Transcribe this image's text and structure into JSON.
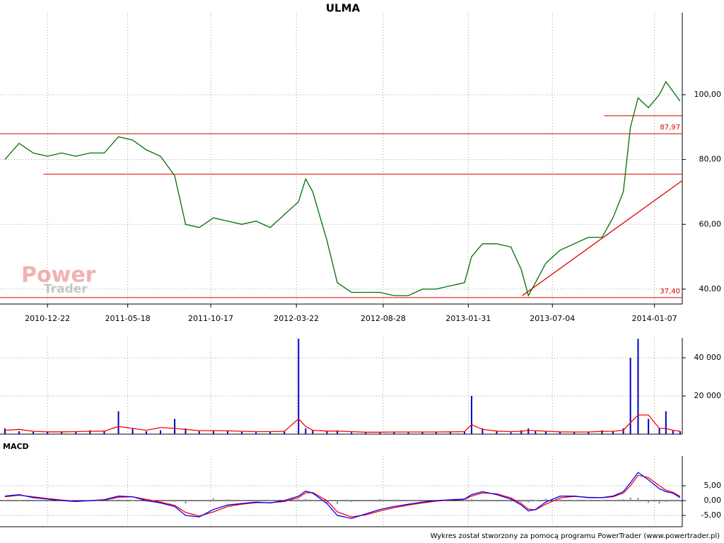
{
  "chart_data": [
    {
      "type": "line",
      "title": "ULMA",
      "x": [
        "2010-10-05",
        "2010-10-31",
        "2010-11-26",
        "2010-12-22",
        "2011-01-17",
        "2011-02-12",
        "2011-03-10",
        "2011-04-05",
        "2011-05-01",
        "2011-05-27",
        "2011-06-21",
        "2011-07-17",
        "2011-08-12",
        "2011-09-01",
        "2011-09-26",
        "2011-10-22",
        "2011-11-17",
        "2011-12-13",
        "2012-01-08",
        "2012-02-03",
        "2012-02-29",
        "2012-03-26",
        "2012-04-08",
        "2012-04-21",
        "2012-05-17",
        "2012-06-05",
        "2012-07-01",
        "2012-07-27",
        "2012-08-22",
        "2012-09-17",
        "2012-10-13",
        "2012-11-08",
        "2012-12-03",
        "2012-12-29",
        "2013-01-24",
        "2013-02-06",
        "2013-02-26",
        "2013-03-24",
        "2013-04-19",
        "2013-05-08",
        "2013-05-21",
        "2013-06-03",
        "2013-06-22",
        "2013-07-18",
        "2013-08-13",
        "2013-09-08",
        "2013-10-03",
        "2013-10-23",
        "2013-11-11",
        "2013-11-24",
        "2013-12-08",
        "2013-12-27",
        "2014-01-16",
        "2014-01-28",
        "2014-02-10",
        "2014-02-23"
      ],
      "series": [
        {
          "color": "#007000",
          "values": [
            80,
            85,
            82,
            81,
            82,
            81,
            82,
            82,
            87,
            86,
            83,
            81,
            75,
            60,
            59,
            62,
            61,
            60,
            61,
            59,
            63,
            67,
            74,
            70,
            55,
            42,
            39,
            39,
            39,
            38,
            38,
            40,
            40,
            41,
            42,
            50,
            54,
            54,
            53,
            46,
            38,
            42,
            48,
            52,
            54,
            56,
            56,
            62,
            70,
            90,
            99,
            96,
            100,
            104,
            101,
            98
          ]
        }
      ],
      "xlim": [
        "2010-09-26",
        "2014-02-27"
      ],
      "xticks": [
        "2010-12-22",
        "2011-05-18",
        "2011-10-17",
        "2012-03-22",
        "2012-08-28",
        "2013-01-31",
        "2013-07-04",
        "2014-01-07"
      ],
      "ylim": [
        35.4,
        125.3
      ],
      "yticks": [
        {
          "value": 40,
          "label": "40,00"
        },
        {
          "value": 60,
          "label": "60,00"
        },
        {
          "value": 80,
          "label": "80,00"
        },
        {
          "value": 100,
          "label": "100,00"
        }
      ],
      "grid": true,
      "levels": [
        {
          "value": 87.97,
          "label": "87,97"
        },
        {
          "value": 37.4,
          "label": "37,40"
        }
      ],
      "support_lines": [
        {
          "from": "2010-12-15",
          "value": 75.5
        },
        {
          "from": "2013-10-07",
          "value": 93.5
        }
      ],
      "trendline": {
        "x": [
          "2013-05-10",
          "2014-02-27"
        ],
        "y": [
          38,
          73.5
        ]
      },
      "line_color": "#e00000"
    },
    {
      "type": "volume",
      "x": [
        "2010-10-05",
        "2010-10-31",
        "2010-11-26",
        "2010-12-22",
        "2011-01-17",
        "2011-02-12",
        "2011-03-10",
        "2011-04-05",
        "2011-05-01",
        "2011-05-27",
        "2011-06-21",
        "2011-07-17",
        "2011-08-12",
        "2011-09-01",
        "2011-09-26",
        "2011-10-22",
        "2011-11-17",
        "2011-12-13",
        "2012-01-08",
        "2012-02-03",
        "2012-02-29",
        "2012-03-26",
        "2012-04-08",
        "2012-04-21",
        "2012-05-17",
        "2012-06-05",
        "2012-07-01",
        "2012-07-27",
        "2012-08-22",
        "2012-09-17",
        "2012-10-13",
        "2012-11-08",
        "2012-12-03",
        "2012-12-29",
        "2013-01-24",
        "2013-02-06",
        "2013-02-26",
        "2013-03-24",
        "2013-04-19",
        "2013-05-08",
        "2013-05-21",
        "2013-06-03",
        "2013-06-22",
        "2013-07-18",
        "2013-08-13",
        "2013-09-08",
        "2013-10-03",
        "2013-10-23",
        "2013-11-11",
        "2013-11-24",
        "2013-12-08",
        "2013-12-27",
        "2014-01-16",
        "2014-01-28",
        "2014-02-10",
        "2014-02-23"
      ],
      "series": [
        {
          "type": "bar",
          "color": "#0000c0",
          "values": [
            3000,
            1500,
            1200,
            1000,
            1500,
            1200,
            2000,
            1500,
            12000,
            3000,
            1500,
            2000,
            8000,
            3000,
            1500,
            2000,
            1500,
            1200,
            1000,
            1500,
            1500,
            50000,
            3000,
            2000,
            1500,
            2000,
            1000,
            800,
            1000,
            1200,
            1000,
            1200,
            1000,
            1500,
            1500,
            20000,
            3000,
            1500,
            1000,
            2000,
            3000,
            1500,
            1500,
            1000,
            1200,
            1000,
            2000,
            1500,
            3000,
            40000,
            50000,
            8000,
            3000,
            12000,
            2000,
            1500
          ]
        },
        {
          "type": "line",
          "color": "#ff0000",
          "values": [
            2000,
            2500,
            1500,
            1200,
            1200,
            1300,
            1500,
            1600,
            4000,
            3000,
            2000,
            3500,
            3000,
            2500,
            1800,
            1800,
            1700,
            1500,
            1300,
            1300,
            1500,
            8000,
            4000,
            2000,
            1600,
            1600,
            1300,
            1000,
            1000,
            1100,
            1100,
            1100,
            1100,
            1200,
            1300,
            5000,
            2500,
            1600,
            1300,
            1500,
            2000,
            1800,
            1500,
            1200,
            1100,
            1100,
            1400,
            1500,
            2000,
            6000,
            10000,
            10000,
            3000,
            3000,
            2000,
            1500
          ]
        }
      ],
      "ylim": [
        0,
        50400
      ],
      "yticks": [
        {
          "value": 20000,
          "label": "20 000"
        },
        {
          "value": 40000,
          "label": "40 000"
        }
      ]
    },
    {
      "type": "macd",
      "title": "MACD",
      "x": [
        "2010-10-05",
        "2010-10-31",
        "2010-11-26",
        "2010-12-22",
        "2011-01-17",
        "2011-02-12",
        "2011-03-10",
        "2011-04-05",
        "2011-05-01",
        "2011-05-27",
        "2011-06-21",
        "2011-07-17",
        "2011-08-12",
        "2011-09-01",
        "2011-09-26",
        "2011-10-22",
        "2011-11-17",
        "2011-12-13",
        "2012-01-08",
        "2012-02-03",
        "2012-02-29",
        "2012-03-26",
        "2012-04-08",
        "2012-04-21",
        "2012-05-17",
        "2012-06-05",
        "2012-07-01",
        "2012-07-27",
        "2012-08-22",
        "2012-09-17",
        "2012-10-13",
        "2012-11-08",
        "2012-12-03",
        "2012-12-29",
        "2013-01-24",
        "2013-02-06",
        "2013-02-26",
        "2013-03-24",
        "2013-04-19",
        "2013-05-08",
        "2013-05-21",
        "2013-06-03",
        "2013-06-22",
        "2013-07-18",
        "2013-08-13",
        "2013-09-08",
        "2013-10-03",
        "2013-10-23",
        "2013-11-11",
        "2013-11-24",
        "2013-12-08",
        "2013-12-27",
        "2014-01-16",
        "2014-01-28",
        "2014-02-10",
        "2014-02-23"
      ],
      "series": [
        {
          "type": "bar",
          "color": "#8899aa",
          "values": [
            0.2,
            0.2,
            -0.3,
            -0.2,
            -0.2,
            -0.1,
            0.1,
            0.1,
            0.4,
            0,
            -0.4,
            -0.3,
            -0.4,
            -1,
            -0.3,
            0.8,
            0.5,
            0.2,
            0.2,
            -0.1,
            0.3,
            0.5,
            0.6,
            -0.2,
            -1,
            -1.2,
            -0.5,
            0.3,
            0.5,
            0.4,
            0.3,
            0.3,
            0.2,
            0.1,
            0.1,
            0.5,
            0.4,
            -0.3,
            -0.4,
            -0.5,
            -0.6,
            0.1,
            0.7,
            0.6,
            0.1,
            -0.1,
            0,
            0.2,
            0.5,
            1,
            1,
            -0.8,
            -1,
            -0.5,
            -0.3,
            -0.4
          ]
        },
        {
          "type": "line",
          "color": "#ff0000",
          "values": [
            1.3,
            1.8,
            1.3,
            0.7,
            0.2,
            -0.2,
            -0.1,
            0.2,
            1.1,
            1.3,
            0.4,
            -0.5,
            -1.6,
            -4,
            -5.2,
            -3.8,
            -2,
            -1.2,
            -0.7,
            -0.7,
            -0.3,
            1,
            2.6,
            2.7,
            0,
            -3.8,
            -5.5,
            -4.8,
            -3.5,
            -2.4,
            -1.5,
            -0.8,
            -0.2,
            0.2,
            0.4,
            1.5,
            2.6,
            2.3,
            0.9,
            -1,
            -2.9,
            -3.1,
            -1.2,
            0.9,
            1.4,
            1.1,
            1,
            1.3,
            2.5,
            5,
            8.5,
            7.8,
            5,
            3.5,
            2.8,
            1.4
          ]
        },
        {
          "type": "line",
          "color": "#0000ff",
          "values": [
            1.5,
            2,
            1,
            0.5,
            0,
            -0.3,
            0,
            0.3,
            1.5,
            1.3,
            0,
            -0.8,
            -2,
            -5,
            -5.5,
            -3,
            -1.5,
            -1,
            -0.5,
            -0.8,
            0,
            1.5,
            3.2,
            2.5,
            -1,
            -5,
            -6,
            -4.5,
            -3,
            -2,
            -1.2,
            -0.5,
            0,
            0.3,
            0.5,
            2,
            3,
            2,
            0.5,
            -1.5,
            -3.5,
            -3,
            -0.5,
            1.5,
            1.5,
            1,
            1,
            1.5,
            3,
            6,
            9.5,
            7,
            4,
            3,
            2.5,
            1
          ]
        }
      ],
      "ylim": [
        -8.8,
        15
      ],
      "yticks": [
        {
          "value": -5,
          "label": "-5,00"
        },
        {
          "value": 0,
          "label": "0,00"
        },
        {
          "value": 5,
          "label": "5,00"
        }
      ]
    }
  ],
  "watermark": [
    "Power",
    "Trader"
  ],
  "footer": "Wykres został stworzony za pomocą programu PowerTrader (www.powertrader.pl)"
}
